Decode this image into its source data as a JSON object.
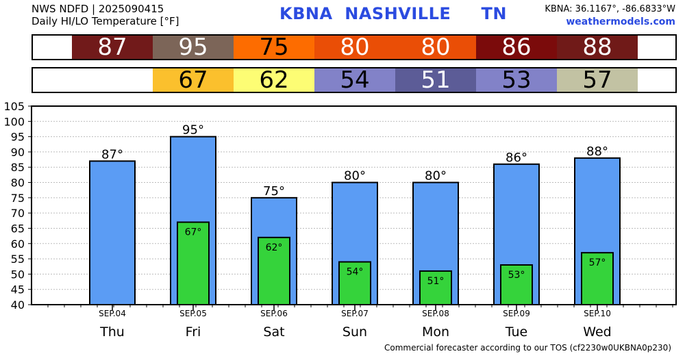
{
  "header": {
    "line1": "NWS NDFD | 2025090415",
    "line2": "Daily HI/LO Temperature [°F]",
    "station": "KBNA  NASHVILLE     TN",
    "coords": "KBNA: 36.1167°, -86.6833°W",
    "site": "weathermodels.com"
  },
  "strips": {
    "hi": [
      {
        "text": "87",
        "bg": "#711a1a",
        "fg": "#ffffff"
      },
      {
        "text": "95",
        "bg": "#7c6558",
        "fg": "#ffffff"
      },
      {
        "text": "75",
        "bg": "#fd6c00",
        "fg": "#000000"
      },
      {
        "text": "80",
        "bg": "#ea4e06",
        "fg": "#ffffff"
      },
      {
        "text": "80",
        "bg": "#ea4e06",
        "fg": "#ffffff"
      },
      {
        "text": "86",
        "bg": "#7b0b0b",
        "fg": "#ffffff"
      },
      {
        "text": "88",
        "bg": "#701a18",
        "fg": "#ffffff"
      }
    ],
    "lo": [
      {
        "text": "67",
        "bg": "#fbc02d",
        "fg": "#000000"
      },
      {
        "text": "62",
        "bg": "#fdfd74",
        "fg": "#000000"
      },
      {
        "text": "54",
        "bg": "#8282c8",
        "fg": "#000000"
      },
      {
        "text": "51",
        "bg": "#5c5c97",
        "fg": "#ffffff"
      },
      {
        "text": "53",
        "bg": "#8282c8",
        "fg": "#000000"
      },
      {
        "text": "57",
        "bg": "#c2c2a3",
        "fg": "#000000"
      }
    ]
  },
  "chart_data": {
    "type": "bar",
    "categories": [
      "SEP.04",
      "SEP.05",
      "SEP.06",
      "SEP.07",
      "SEP.08",
      "SEP.09",
      "SEP.10"
    ],
    "days": [
      "Thu",
      "Fri",
      "Sat",
      "Sun",
      "Mon",
      "Tue",
      "Wed"
    ],
    "series": [
      {
        "values": [
          87,
          95,
          75,
          80,
          80,
          86,
          88
        ],
        "labels": [
          "87°",
          "95°",
          "75°",
          "80°",
          "80°",
          "86°",
          "88°"
        ],
        "color": "#5b9cf4"
      },
      {
        "values": [
          null,
          67,
          62,
          54,
          51,
          53,
          57
        ],
        "labels": [
          "",
          "67°",
          "62°",
          "54°",
          "51°",
          "53°",
          "57°"
        ],
        "color": "#35d33b"
      }
    ],
    "ylim": [
      40,
      105
    ],
    "yticks": [
      "40",
      "45",
      "50",
      "55",
      "60",
      "65",
      "70",
      "75",
      "80",
      "85",
      "90",
      "95",
      "100",
      "105"
    ],
    "grid": true
  },
  "footer": "Commercial forecaster according to our TOS (cf2230w0UKBNA0p230)"
}
